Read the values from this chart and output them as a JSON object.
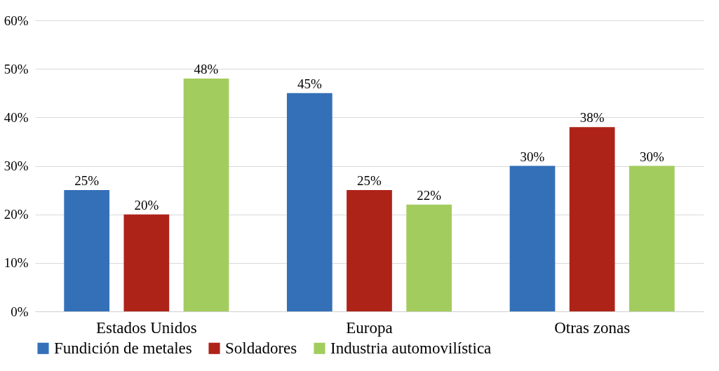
{
  "chart_data": {
    "type": "bar",
    "categories": [
      "Estados Unidos",
      "Europa",
      "Otras zonas"
    ],
    "series": [
      {
        "name": "Fundición de metales",
        "color": "#3470b8",
        "values": [
          25,
          45,
          30
        ],
        "value_labels": [
          "25%",
          "45%",
          "30%"
        ]
      },
      {
        "name": "Soldadores",
        "color": "#ae2318",
        "values": [
          20,
          25,
          38
        ],
        "value_labels": [
          "20%",
          "25%",
          "38%"
        ]
      },
      {
        "name": "Industria automovilística",
        "color": "#a3cc5e",
        "values": [
          48,
          22,
          30
        ],
        "value_labels": [
          "48%",
          "22%",
          "30%"
        ]
      }
    ],
    "ylim": [
      0,
      60
    ],
    "yticks": [
      {
        "value": 0,
        "label": "0%"
      },
      {
        "value": 10,
        "label": "10%"
      },
      {
        "value": 20,
        "label": "20%"
      },
      {
        "value": 30,
        "label": "30%"
      },
      {
        "value": 40,
        "label": "40%"
      },
      {
        "value": 50,
        "label": "50%"
      },
      {
        "value": 60,
        "label": "60%"
      }
    ],
    "grid": "y",
    "legend": "bottom"
  }
}
